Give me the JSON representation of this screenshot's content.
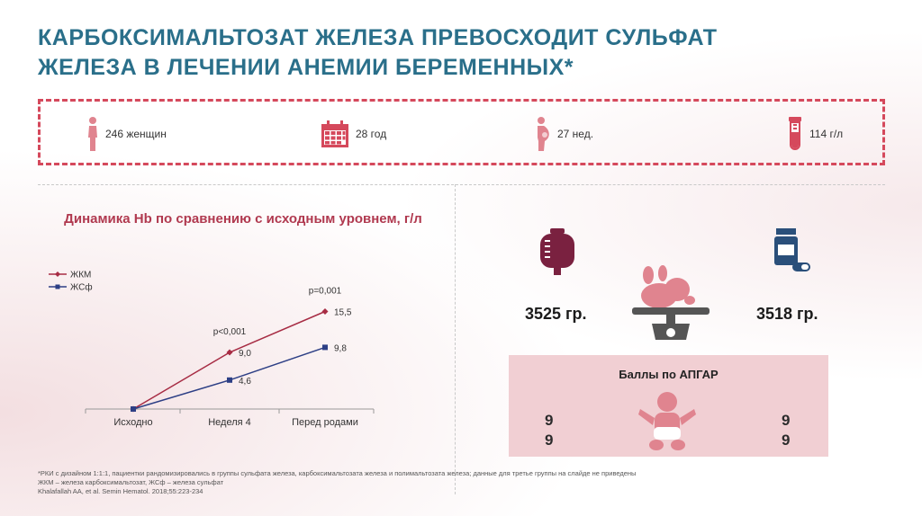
{
  "title": {
    "line1": "КАРБОКСИМАЛЬТОЗАТ ЖЕЛЕЗА ПРЕВОСХОДИТ СУЛЬФАТ",
    "line2": "ЖЕЛЕЗА В ЛЕЧЕНИИ АНЕМИИ БЕРЕМЕННЫХ*"
  },
  "stats": [
    {
      "icon": "woman-silhouette-icon",
      "label": "246 женщин"
    },
    {
      "icon": "calendar-icon",
      "label": "28 год"
    },
    {
      "icon": "pregnant-woman-icon",
      "label": "27 нед."
    },
    {
      "icon": "test-tube-icon",
      "label": "114 г/л"
    }
  ],
  "chart_data": {
    "type": "line",
    "title": "Динамика Hb по сравнению с исходным уровнем, г/л",
    "categories": [
      "Исходно",
      "Неделя 4",
      "Перед родами"
    ],
    "series": [
      {
        "name": "ЖКМ",
        "values": [
          0,
          9.0,
          15.5
        ],
        "labels": [
          "",
          "9,0",
          "15,5"
        ],
        "color": "#a72c44"
      },
      {
        "name": "ЖСф",
        "values": [
          0,
          4.6,
          9.8
        ],
        "labels": [
          "",
          "4,6",
          "9,8"
        ],
        "color": "#2d3f85"
      }
    ],
    "annotations": [
      {
        "category": "Неделя 4",
        "text": "p<0,001"
      },
      {
        "category": "Перед родами",
        "text": "p=0,001"
      }
    ],
    "legend_position": "top-left",
    "grid": false
  },
  "weights": {
    "left": "3525 гр.",
    "right": "3518 гр."
  },
  "icons": {
    "left": "iv-bag-icon",
    "center": "baby-on-scale-icon",
    "right": "pill-bottle-icon",
    "apgar": "baby-icon"
  },
  "apgar": {
    "title": "Баллы по АПГАР",
    "left": [
      "9",
      "9"
    ],
    "right": [
      "9",
      "9"
    ]
  },
  "footnote": {
    "line1": "*РКИ с дизайном 1:1:1, пациентки рандомизировались в группы сульфата железа, карбоксимальтозата железа и полимальтозата железа; данные для третье группы на слайде не приведены",
    "line2": "ЖКМ – железа карбоксимальтозат, ЖСф – железа сульфат",
    "line3": "Khalafallah AA, et al. Semin Hematol. 2018;55:223-234"
  },
  "colors": {
    "title": "#2a6f8a",
    "accent": "#d5495c",
    "plum": "#7a2140",
    "navy": "#2a4f7a",
    "pink": "#e0848f"
  }
}
